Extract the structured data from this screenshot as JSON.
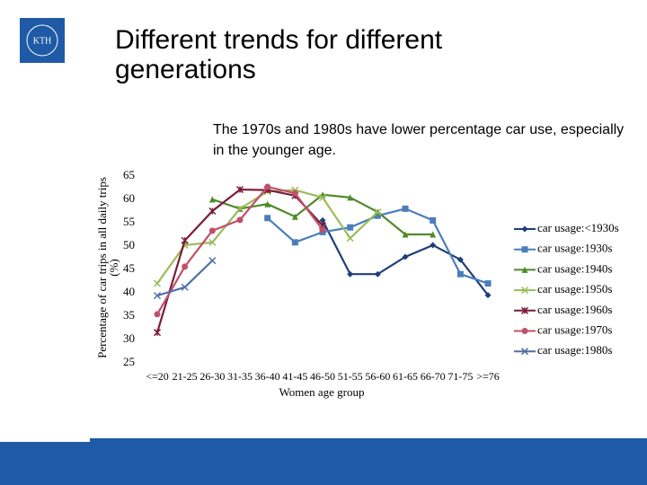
{
  "header": {
    "logo_text": "KTH",
    "title": "Different trends for different generations",
    "subtitle": "The 1970s and 1980s have lower percentage car use, especially in the younger age."
  },
  "chart_data": {
    "type": "line",
    "ylabel": "Percentage of car trips in all daily trips (%)",
    "xlabel": "Women age group",
    "categories": [
      "<=20",
      "21-25",
      "26-30",
      "31-35",
      "36-40",
      "41-45",
      "46-50",
      "51-55",
      "56-60",
      "61-65",
      "66-70",
      "71-75",
      ">=76"
    ],
    "ylim": [
      25,
      65
    ],
    "yticks": [
      25,
      30,
      35,
      40,
      45,
      50,
      55,
      60,
      65
    ],
    "grid": false,
    "legend": "right",
    "series": [
      {
        "name": "car usage:<1930s",
        "color": "#1f3f7a",
        "marker": "diamond",
        "values": [
          null,
          null,
          null,
          null,
          null,
          null,
          55.5,
          44,
          44,
          47.7,
          50.2,
          47.1,
          39.5
        ]
      },
      {
        "name": "car usage:1930s",
        "color": "#4a7ebb",
        "marker": "square",
        "values": [
          null,
          null,
          null,
          null,
          56,
          50.8,
          53,
          54,
          56.5,
          58,
          55.5,
          44,
          42
        ]
      },
      {
        "name": "car usage:1940s",
        "color": "#4e8a2a",
        "marker": "triangle",
        "values": [
          null,
          null,
          60,
          58,
          59,
          56.3,
          61,
          60.4,
          57.3,
          52.5,
          52.5,
          null,
          null
        ]
      },
      {
        "name": "car usage:1950s",
        "color": "#9bbb59",
        "marker": "x",
        "values": [
          42,
          50.2,
          50.8,
          58,
          61.7,
          62,
          60.4,
          51.7,
          57.3,
          null,
          null,
          null,
          null
        ]
      },
      {
        "name": "car usage:1960s",
        "color": "#7b1c3a",
        "marker": "star",
        "values": [
          31.5,
          51.2,
          57.5,
          62.1,
          62,
          60.8,
          54.4,
          null,
          null,
          null,
          null,
          null,
          null
        ]
      },
      {
        "name": "car usage:1970s",
        "color": "#c0506a",
        "marker": "circle",
        "values": [
          35.4,
          45.6,
          53.3,
          55.6,
          62.7,
          61.3,
          53.5,
          null,
          null,
          null,
          null,
          null,
          null
        ]
      },
      {
        "name": "car usage:1980s",
        "color": "#4f6fa8",
        "marker": "x",
        "values": [
          39.4,
          41.2,
          46.9,
          null,
          null,
          null,
          null,
          null,
          null,
          null,
          null,
          null,
          null
        ]
      }
    ]
  }
}
